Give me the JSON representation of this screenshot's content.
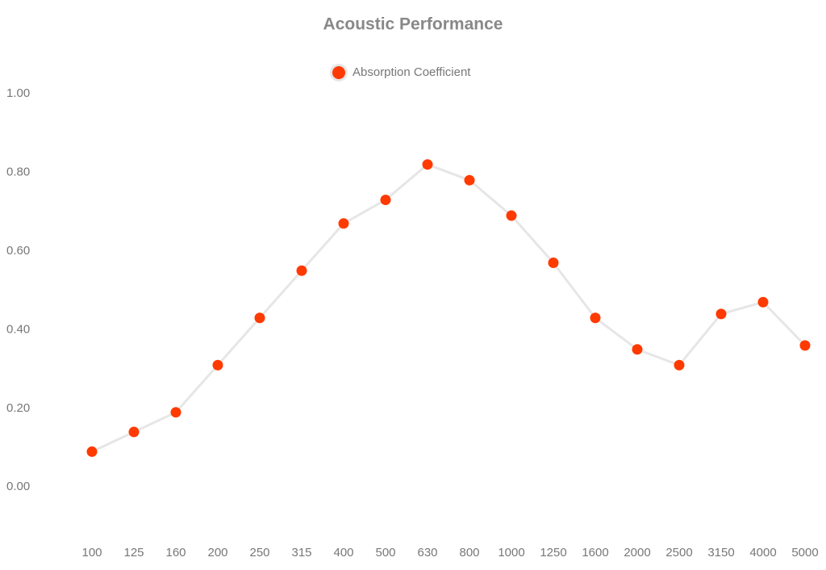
{
  "chart_data": {
    "type": "line",
    "title": "Acoustic Performance",
    "categories": [
      "100",
      "125",
      "160",
      "200",
      "250",
      "315",
      "400",
      "500",
      "630",
      "800",
      "1000",
      "1250",
      "1600",
      "2000",
      "2500",
      "3150",
      "4000",
      "5000"
    ],
    "series": [
      {
        "name": "Absorption Coefficient",
        "color": "#ff3a00",
        "line_color": "#e6e6e6",
        "values": [
          0.09,
          0.14,
          0.19,
          0.31,
          0.43,
          0.55,
          0.67,
          0.73,
          0.82,
          0.78,
          0.69,
          0.57,
          0.43,
          0.35,
          0.31,
          0.44,
          0.47,
          0.36
        ]
      }
    ],
    "ylim": [
      -0.1,
      1.0
    ],
    "yticks": [
      {
        "value": 0,
        "label": "0.00"
      },
      {
        "value": 0.2,
        "label": "0.20"
      },
      {
        "value": 0.4,
        "label": "0.40"
      },
      {
        "value": 0.6,
        "label": "0.60"
      },
      {
        "value": 0.8,
        "label": "0.80"
      },
      {
        "value": 1.0,
        "label": "1.00"
      }
    ],
    "grid": false,
    "legend": "top"
  }
}
